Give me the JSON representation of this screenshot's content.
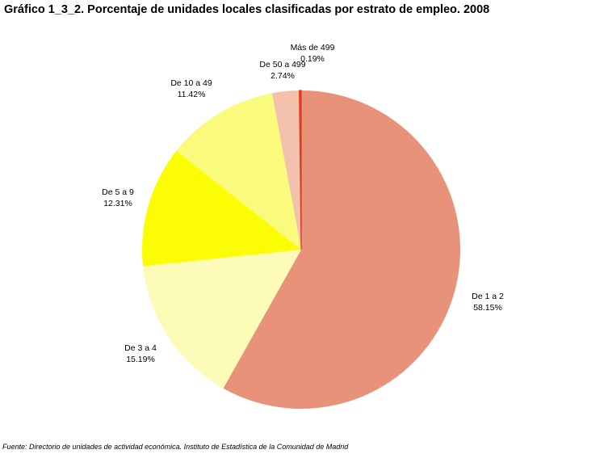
{
  "chart_data": {
    "type": "pie",
    "title": "Gráfico 1_3_2. Porcentaje de unidades locales clasificadas por estrato de empleo. 2008",
    "slices": [
      {
        "label": "De 1 a 2",
        "value": 58.15,
        "value_label": "58.15%",
        "color": "#E9927A"
      },
      {
        "label": "De 3 a 4",
        "value": 15.19,
        "value_label": "15.19%",
        "color": "#FCFBB8"
      },
      {
        "label": "De 5 a 9",
        "value": 12.31,
        "value_label": "12.31%",
        "color": "#FCFC04"
      },
      {
        "label": "De 10 a 49",
        "value": 11.42,
        "value_label": "11.42%",
        "color": "#FAFA7C"
      },
      {
        "label": "De 50 a 499",
        "value": 2.74,
        "value_label": "2.74%",
        "color": "#F4C2AC"
      },
      {
        "label": "Más de 499",
        "value": 0.19,
        "value_label": "0.19%",
        "color": "#E03A20"
      }
    ],
    "legend": "none"
  },
  "source": "Fuente: Directorio de unidades de actividad económica. Instituto de Estadística de la Comunidad de Madrid"
}
